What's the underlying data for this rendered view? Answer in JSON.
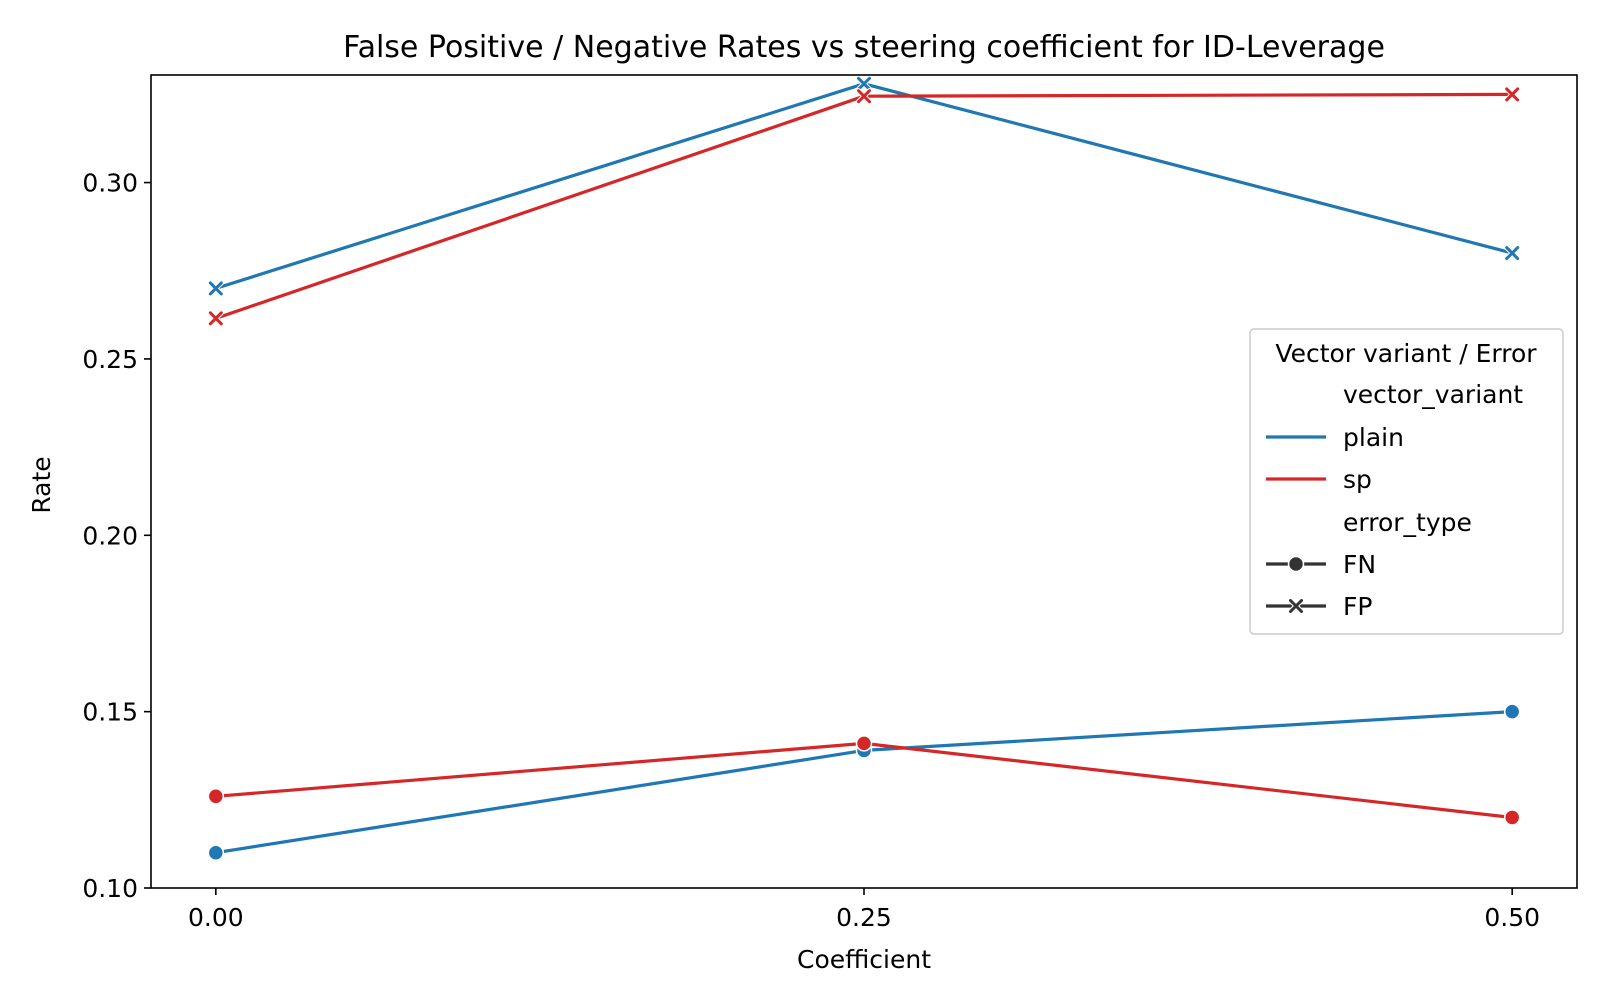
{
  "chart_data": {
    "type": "line",
    "title": "False Positive / Negative Rates vs steering coefficient for ID-Leverage",
    "xlabel": "Coefficient",
    "ylabel": "Rate",
    "x": [
      0.0,
      0.25,
      0.5
    ],
    "x_tick_labels": [
      "0.00",
      "0.25",
      "0.50"
    ],
    "y_ticks": [
      0.1,
      0.15,
      0.2,
      0.25,
      0.3
    ],
    "y_tick_labels": [
      "0.10",
      "0.15",
      "0.20",
      "0.25",
      "0.30"
    ],
    "xlim": [
      -0.025,
      0.525
    ],
    "ylim": [
      0.1,
      0.3305
    ],
    "grid": false,
    "legend": {
      "title": "Vector variant / Error",
      "placement": "center-right",
      "entries": [
        {
          "label": "vector_variant",
          "kind": "header"
        },
        {
          "label": "plain",
          "kind": "color",
          "color": "#1f77b4"
        },
        {
          "label": "sp",
          "kind": "color",
          "color": "#d62728"
        },
        {
          "label": "error_type",
          "kind": "header"
        },
        {
          "label": "FN",
          "kind": "marker",
          "marker": "circle"
        },
        {
          "label": "FP",
          "kind": "marker",
          "marker": "x"
        }
      ]
    },
    "series": [
      {
        "vector_variant": "plain",
        "error_type": "FP",
        "color": "#1f77b4",
        "marker": "x",
        "values": [
          0.27,
          0.328,
          0.28
        ]
      },
      {
        "vector_variant": "sp",
        "error_type": "FP",
        "color": "#d62728",
        "marker": "x",
        "values": [
          0.2615,
          0.3245,
          0.325
        ]
      },
      {
        "vector_variant": "plain",
        "error_type": "FN",
        "color": "#1f77b4",
        "marker": "circle",
        "values": [
          0.11,
          0.139,
          0.15
        ]
      },
      {
        "vector_variant": "sp",
        "error_type": "FN",
        "color": "#d62728",
        "marker": "circle",
        "values": [
          0.126,
          0.141,
          0.12
        ]
      }
    ]
  }
}
